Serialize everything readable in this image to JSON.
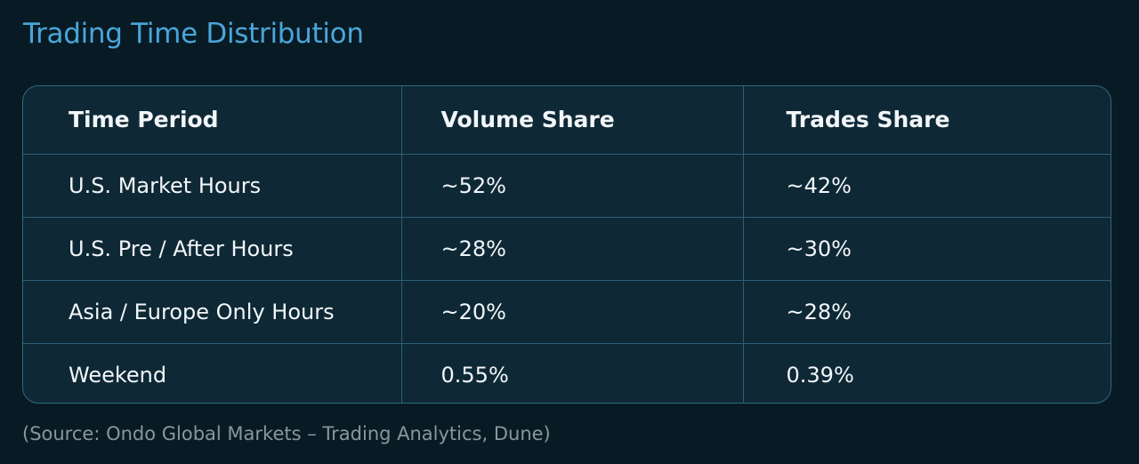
{
  "title": "Trading Time Distribution",
  "source": "(Source: Ondo Global Markets – Trading Analytics, Dune)",
  "colors": {
    "background": "#081b25",
    "title": "#4aa6d8",
    "table_background": "#0e2836",
    "border": "#2f6880",
    "text": "#f2f6f8",
    "source": "#8a969d"
  },
  "chart_data": {
    "type": "table",
    "title": "Trading Time Distribution",
    "columns": [
      "Time Period",
      "Volume Share",
      "Trades Share"
    ],
    "rows": [
      [
        "U.S. Market Hours",
        "~52%",
        "~42%"
      ],
      [
        "U.S. Pre / After Hours",
        "~28%",
        "~30%"
      ],
      [
        "Asia / Europe Only Hours",
        "~20%",
        "~28%"
      ],
      [
        "Weekend",
        "0.55%",
        "0.39%"
      ]
    ]
  }
}
